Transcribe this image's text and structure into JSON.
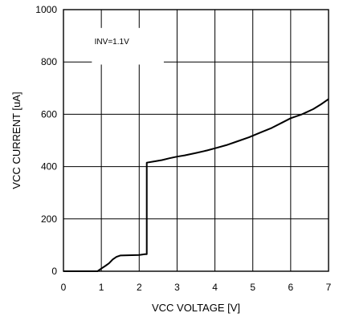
{
  "chart_data": {
    "type": "line",
    "title": "",
    "xlabel": "VCC VOLTAGE [V]",
    "ylabel": "VCC CURRENT [uA]",
    "xlim": [
      0,
      7
    ],
    "ylim": [
      0,
      1000
    ],
    "xticks": [
      "0",
      "1",
      "2",
      "3",
      "4",
      "5",
      "6",
      "7"
    ],
    "yticks": [
      "0",
      "200",
      "400",
      "600",
      "800",
      "1000"
    ],
    "grid": true,
    "annotation": "INV=1.1V",
    "series": [
      {
        "color": "#000000",
        "points": [
          [
            0.0,
            0
          ],
          [
            0.9,
            0
          ],
          [
            1.0,
            10
          ],
          [
            1.1,
            20
          ],
          [
            1.2,
            30
          ],
          [
            1.3,
            45
          ],
          [
            1.4,
            55
          ],
          [
            1.5,
            60
          ],
          [
            2.0,
            62
          ],
          [
            2.15,
            65
          ],
          [
            2.2,
            65
          ],
          [
            2.2,
            415
          ],
          [
            2.4,
            420
          ],
          [
            2.6,
            425
          ],
          [
            2.8,
            432
          ],
          [
            3.0,
            438
          ],
          [
            3.2,
            443
          ],
          [
            3.5,
            452
          ],
          [
            3.8,
            462
          ],
          [
            4.0,
            470
          ],
          [
            4.3,
            482
          ],
          [
            4.6,
            497
          ],
          [
            4.9,
            512
          ],
          [
            5.2,
            530
          ],
          [
            5.5,
            548
          ],
          [
            5.8,
            570
          ],
          [
            6.0,
            585
          ],
          [
            6.3,
            600
          ],
          [
            6.6,
            620
          ],
          [
            6.8,
            638
          ],
          [
            7.0,
            658
          ]
        ]
      }
    ]
  }
}
